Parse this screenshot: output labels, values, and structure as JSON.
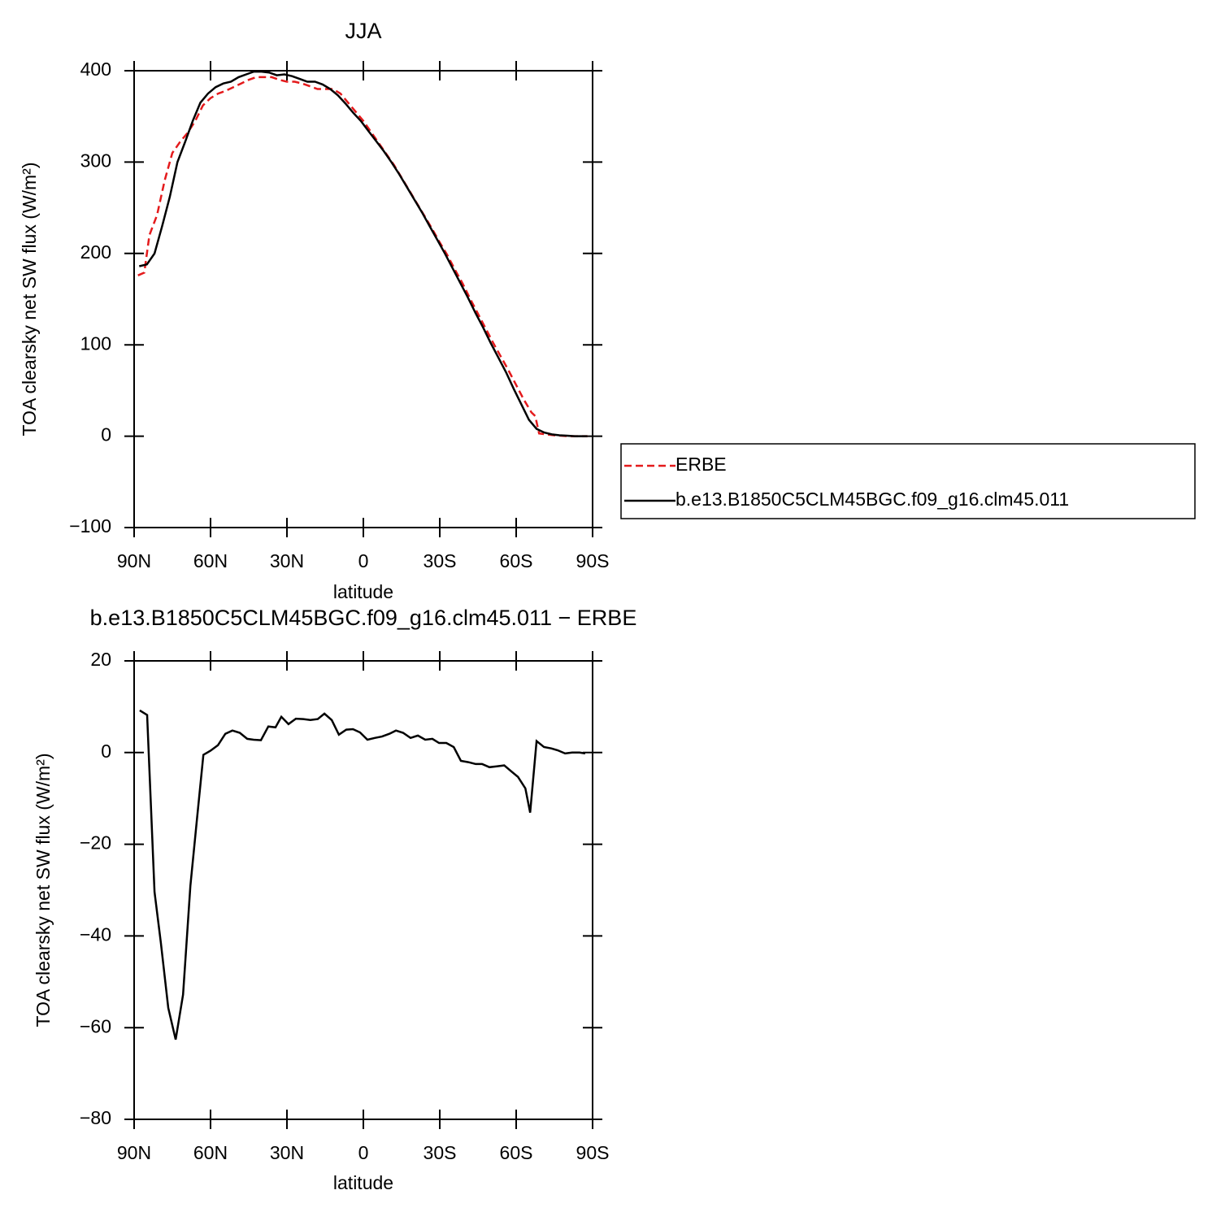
{
  "chart_data": [
    {
      "type": "line",
      "title": "JJA",
      "xlabel": "latitude",
      "ylabel": "TOA clearsky net SW flux (W/m²)",
      "xlim": [
        90,
        -90
      ],
      "xticks": [
        {
          "value": 90,
          "label": "90N"
        },
        {
          "value": 60,
          "label": "60N"
        },
        {
          "value": 30,
          "label": "30N"
        },
        0,
        {
          "value": -30,
          "label": "30S"
        },
        {
          "value": -60,
          "label": "60S"
        },
        {
          "value": -90,
          "label": "90S"
        }
      ],
      "ylim": [
        -100,
        400
      ],
      "yticks": [
        {
          "value": -100,
          "label": "−100"
        },
        0,
        100,
        200,
        300,
        400
      ],
      "legend": "right",
      "series": [
        {
          "name": "ERBE",
          "color": "#e41a1c",
          "linestyle": "dashed",
          "x": [
            88.5,
            86,
            84,
            81,
            78,
            75,
            72,
            69,
            66,
            63,
            60,
            57,
            54,
            51,
            48,
            45,
            42,
            39,
            36,
            33,
            30,
            27,
            24,
            21,
            18,
            15,
            12,
            9,
            6,
            3,
            0,
            -3,
            -6,
            -9,
            -12,
            -15,
            -18,
            -21,
            -24,
            -27,
            -30,
            -33,
            -36,
            -39,
            -42,
            -45,
            -48,
            -51,
            -54,
            -57,
            -60,
            -63,
            -66,
            -67.5,
            -69,
            -72,
            -75,
            -80,
            -85,
            -88
          ],
          "values": [
            176,
            179,
            220,
            242,
            280,
            310,
            322,
            332,
            345,
            362,
            370,
            375,
            378,
            382,
            386,
            390,
            393,
            393,
            393,
            390,
            388,
            388,
            386,
            383,
            380,
            380,
            380,
            375,
            365,
            355,
            345,
            333,
            321,
            309,
            297,
            283,
            269,
            255,
            241,
            227,
            212,
            198,
            182,
            167,
            150,
            134,
            118,
            102,
            87,
            72,
            56,
            40,
            26,
            22,
            3,
            2,
            1,
            0,
            0,
            0
          ]
        },
        {
          "name": "b.e13.B1850C5CLM45BGC.f09_g16.clm45.011",
          "color": "#000000",
          "linestyle": "solid",
          "x": [
            88,
            85,
            82,
            79,
            76,
            73,
            70,
            67,
            64,
            61,
            58,
            55,
            52,
            49,
            46,
            43,
            40,
            37,
            34,
            31,
            28,
            25,
            22,
            19,
            16,
            13,
            10,
            7,
            4,
            1,
            -2,
            -5,
            -8,
            -11,
            -14,
            -17,
            -20,
            -23,
            -26,
            -29,
            -32,
            -35,
            -38,
            -41,
            -44,
            -47,
            -50,
            -53,
            -56,
            -59,
            -62,
            -65,
            -68,
            -71,
            -74,
            -77,
            -80,
            -83,
            -86,
            -88
          ],
          "values": [
            186,
            188,
            200,
            230,
            262,
            300,
            322,
            345,
            365,
            375,
            382,
            386,
            388,
            393,
            396,
            399,
            399,
            398,
            395,
            396,
            394,
            391,
            388,
            388,
            385,
            380,
            373,
            364,
            354,
            345,
            334,
            323,
            312,
            300,
            287,
            273,
            259,
            245,
            230,
            215,
            200,
            184,
            168,
            152,
            135,
            119,
            102,
            86,
            70,
            52,
            35,
            18,
            8,
            4,
            2,
            1,
            0.5,
            0,
            0,
            0
          ]
        }
      ]
    },
    {
      "type": "line",
      "title": "b.e13.B1850C5CLM45BGC.f09_g16.clm45.011 − ERBE",
      "xlabel": "latitude",
      "ylabel": "TOA clearsky net SW flux (W/m²)",
      "xlim": [
        90,
        -90
      ],
      "xticks": [
        {
          "value": 90,
          "label": "90N"
        },
        {
          "value": 60,
          "label": "60N"
        },
        {
          "value": 30,
          "label": "30N"
        },
        0,
        {
          "value": -30,
          "label": "30S"
        },
        {
          "value": -60,
          "label": "60S"
        },
        {
          "value": -90,
          "label": "90S"
        }
      ],
      "ylim": [
        -80,
        20
      ],
      "yticks": [
        {
          "value": -80,
          "label": "−80"
        },
        {
          "value": -60,
          "label": "−60"
        },
        {
          "value": -40,
          "label": "−40"
        },
        {
          "value": -20,
          "label": "−20"
        },
        0,
        20
      ],
      "color": "#000000",
      "x": [
        87.8,
        84.9,
        82.0,
        79.5,
        76.6,
        73.7,
        70.8,
        67.9,
        65.4,
        62.8,
        60.0,
        57.1,
        54.2,
        51.4,
        48.5,
        45.6,
        43.1,
        40.2,
        37.3,
        34.5,
        32.2,
        29.4,
        26.5,
        23.6,
        20.8,
        17.9,
        15.3,
        12.4,
        9.6,
        6.7,
        4.1,
        1.3,
        -1.6,
        -4.5,
        -7.3,
        -10.2,
        -12.8,
        -15.6,
        -18.5,
        -21.4,
        -24.3,
        -27.1,
        -29.7,
        -32.6,
        -35.5,
        -38.3,
        -41.2,
        -44.1,
        -46.6,
        -49.5,
        -52.4,
        -55.3,
        -58.1,
        -60.7,
        -63.6,
        -65.5,
        -68.0,
        -70.9,
        -73.8,
        -76.3,
        -79.2,
        -82.0,
        -84.9,
        -87.1
      ],
      "values": [
        9.2,
        8.2,
        -30.4,
        -41.5,
        -55.7,
        -62.6,
        -52.8,
        -29.1,
        -14.9,
        -0.5,
        0.4,
        1.6,
        4.1,
        4.8,
        4.3,
        3.0,
        2.8,
        2.7,
        5.7,
        5.5,
        7.8,
        6.2,
        7.4,
        7.3,
        7.1,
        7.3,
        8.5,
        7.1,
        3.9,
        5.0,
        5.1,
        4.4,
        2.8,
        3.2,
        3.5,
        4.1,
        4.8,
        4.3,
        3.2,
        3.7,
        2.8,
        3.0,
        2.1,
        2.1,
        1.2,
        -1.8,
        -2.1,
        -2.5,
        -2.5,
        -3.2,
        -3.0,
        -2.8,
        -4.1,
        -5.3,
        -7.8,
        -13.1,
        2.5,
        1.2,
        0.9,
        0.5,
        -0.2,
        0.0,
        0.0,
        -0.2
      ]
    }
  ]
}
